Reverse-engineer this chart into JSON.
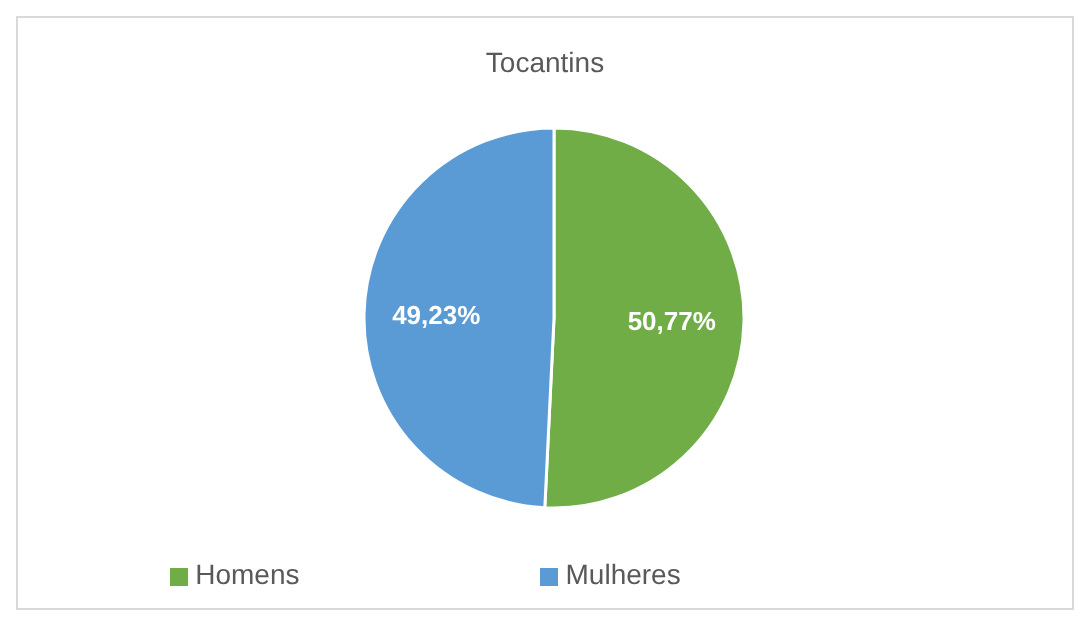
{
  "chart_data": {
    "type": "pie",
    "title": "Tocantins",
    "categories": [
      "Homens",
      "Mulheres"
    ],
    "values": [
      50.77,
      49.23
    ],
    "colors": [
      "#70ad47",
      "#5b9bd5"
    ],
    "value_labels": [
      "50,77%",
      "49,23%"
    ],
    "legend": "bottom"
  }
}
